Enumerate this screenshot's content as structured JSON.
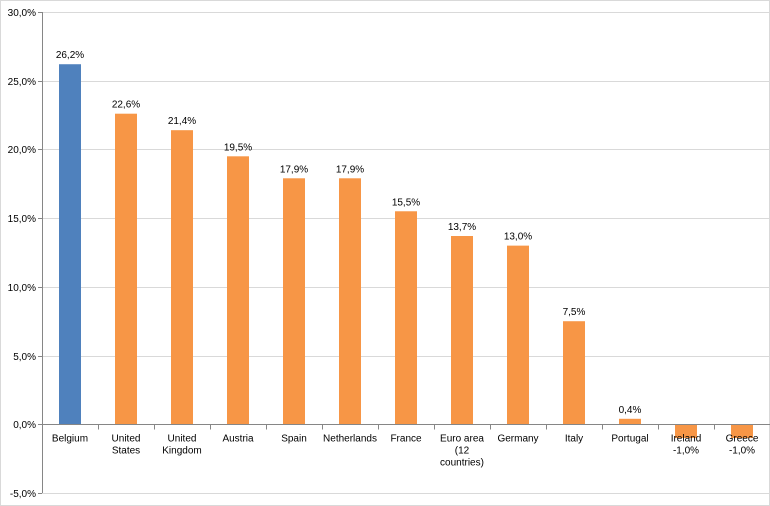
{
  "chart_data": {
    "type": "bar",
    "categories": [
      [
        "Belgium"
      ],
      [
        "United",
        "States"
      ],
      [
        "United",
        "Kingdom"
      ],
      [
        "Austria"
      ],
      [
        "Spain"
      ],
      [
        "Netherlands"
      ],
      [
        "France"
      ],
      [
        "Euro area",
        "(12",
        "countries)"
      ],
      [
        "Germany"
      ],
      [
        "Italy"
      ],
      [
        "Portugal"
      ],
      [
        "Ireland"
      ],
      [
        "Greece"
      ]
    ],
    "values": [
      26.2,
      22.6,
      21.4,
      19.5,
      17.9,
      17.9,
      15.5,
      13.7,
      13.0,
      7.5,
      0.4,
      -1.0,
      -1.0
    ],
    "data_labels": [
      "26,2%",
      "22,6%",
      "21,4%",
      "19,5%",
      "17,9%",
      "17,9%",
      "15,5%",
      "13,7%",
      "13,0%",
      "7,5%",
      "0,4%",
      "-1,0%",
      "-1,0%"
    ],
    "y_ticks": [
      30,
      25,
      20,
      15,
      10,
      5,
      0,
      -5
    ],
    "y_tick_labels": [
      "30,0%",
      "25,0%",
      "20,0%",
      "15,0%",
      "10,0%",
      "5,0%",
      "0,0%",
      "-5,0%"
    ],
    "ylim": [
      -5,
      30
    ],
    "grid": true,
    "legend": "none",
    "colors": {
      "highlight": "#4F81BD",
      "default": "#F79646",
      "grid": "#D9D9D9",
      "axis": "#868686"
    },
    "highlight_index": 0
  }
}
